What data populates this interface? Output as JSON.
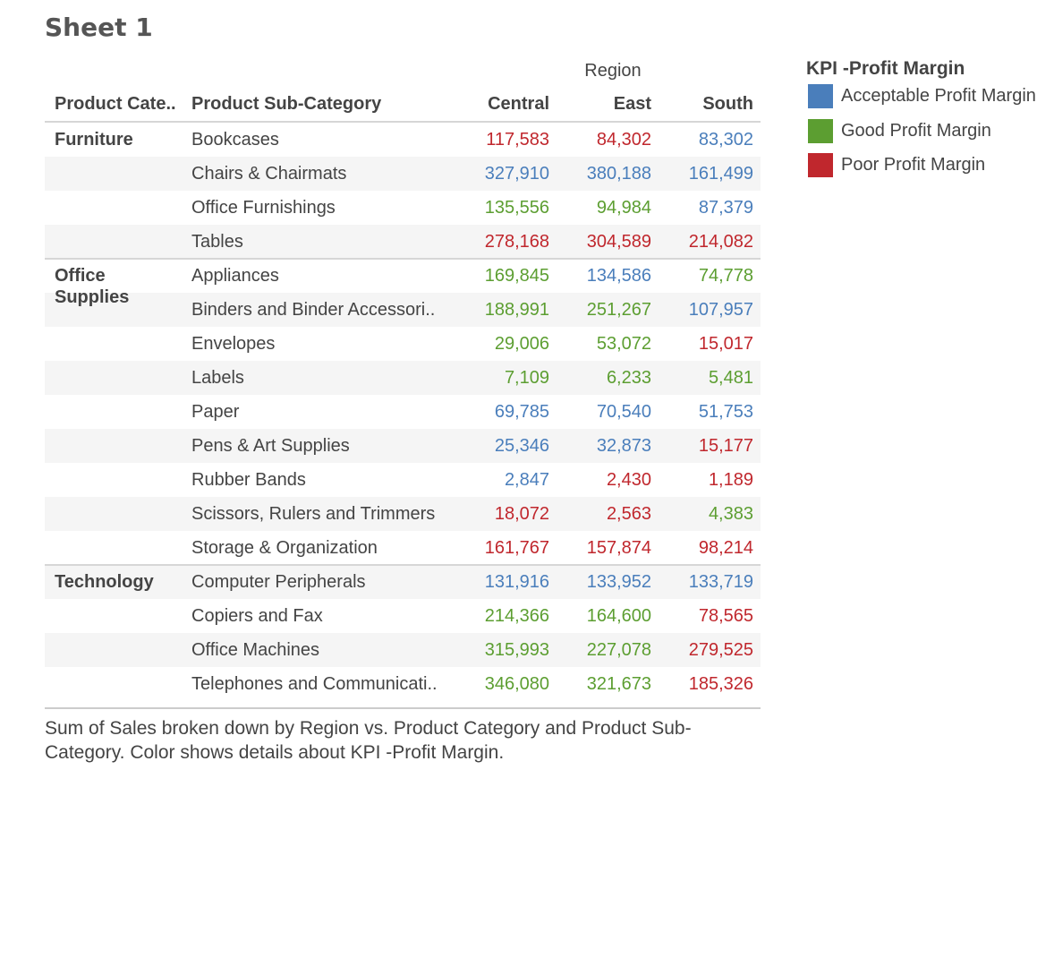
{
  "sheet_title": "Sheet 1",
  "legend": {
    "title": "KPI -Profit Margin",
    "items": [
      {
        "label": "Acceptable Profit Margin",
        "color": "#4a7ebb"
      },
      {
        "label": "Good Profit Margin",
        "color": "#5c9e31"
      },
      {
        "label": "Poor Profit Margin",
        "color": "#c0272d"
      }
    ]
  },
  "caption": "Sum of Sales broken down by Region vs. Product Category and Product Sub-Category.  Color shows details about KPI -Profit Margin.",
  "chart_data": {
    "type": "table",
    "title": "Sheet 1",
    "column_group_label": "Region",
    "row_headers": [
      "Product Cate..",
      "Product Sub-Category"
    ],
    "columns": [
      "Central",
      "East",
      "South"
    ],
    "colors": {
      "A": "#4a7ebb",
      "G": "#5c9e31",
      "P": "#c0272d"
    },
    "categories": [
      {
        "name": "Furniture",
        "rows": [
          {
            "sub": "Bookcases",
            "values": [
              "117,583",
              "84,302",
              "83,302"
            ],
            "kpi": [
              "P",
              "P",
              "A"
            ]
          },
          {
            "sub": "Chairs & Chairmats",
            "values": [
              "327,910",
              "380,188",
              "161,499"
            ],
            "kpi": [
              "A",
              "A",
              "A"
            ]
          },
          {
            "sub": "Office Furnishings",
            "values": [
              "135,556",
              "94,984",
              "87,379"
            ],
            "kpi": [
              "G",
              "G",
              "A"
            ]
          },
          {
            "sub": "Tables",
            "values": [
              "278,168",
              "304,589",
              "214,082"
            ],
            "kpi": [
              "P",
              "P",
              "P"
            ]
          }
        ]
      },
      {
        "name": "Office Supplies",
        "rows": [
          {
            "sub": "Appliances",
            "values": [
              "169,845",
              "134,586",
              "74,778"
            ],
            "kpi": [
              "G",
              "A",
              "G"
            ]
          },
          {
            "sub": "Binders and Binder Accessori..",
            "values": [
              "188,991",
              "251,267",
              "107,957"
            ],
            "kpi": [
              "G",
              "G",
              "A"
            ]
          },
          {
            "sub": "Envelopes",
            "values": [
              "29,006",
              "53,072",
              "15,017"
            ],
            "kpi": [
              "G",
              "G",
              "P"
            ]
          },
          {
            "sub": "Labels",
            "values": [
              "7,109",
              "6,233",
              "5,481"
            ],
            "kpi": [
              "G",
              "G",
              "G"
            ]
          },
          {
            "sub": "Paper",
            "values": [
              "69,785",
              "70,540",
              "51,753"
            ],
            "kpi": [
              "A",
              "A",
              "A"
            ]
          },
          {
            "sub": "Pens & Art Supplies",
            "values": [
              "25,346",
              "32,873",
              "15,177"
            ],
            "kpi": [
              "A",
              "A",
              "P"
            ]
          },
          {
            "sub": "Rubber Bands",
            "values": [
              "2,847",
              "2,430",
              "1,189"
            ],
            "kpi": [
              "A",
              "P",
              "P"
            ]
          },
          {
            "sub": "Scissors, Rulers and Trimmers",
            "values": [
              "18,072",
              "2,563",
              "4,383"
            ],
            "kpi": [
              "P",
              "P",
              "G"
            ]
          },
          {
            "sub": "Storage & Organization",
            "values": [
              "161,767",
              "157,874",
              "98,214"
            ],
            "kpi": [
              "P",
              "P",
              "P"
            ]
          }
        ]
      },
      {
        "name": "Technology",
        "rows": [
          {
            "sub": "Computer Peripherals",
            "values": [
              "131,916",
              "133,952",
              "133,719"
            ],
            "kpi": [
              "A",
              "A",
              "A"
            ]
          },
          {
            "sub": "Copiers and Fax",
            "values": [
              "214,366",
              "164,600",
              "78,565"
            ],
            "kpi": [
              "G",
              "G",
              "P"
            ]
          },
          {
            "sub": "Office Machines",
            "values": [
              "315,993",
              "227,078",
              "279,525"
            ],
            "kpi": [
              "G",
              "G",
              "P"
            ]
          },
          {
            "sub": "Telephones and Communicati..",
            "values": [
              "346,080",
              "321,673",
              "185,326"
            ],
            "kpi": [
              "G",
              "G",
              "P"
            ]
          }
        ]
      }
    ]
  }
}
